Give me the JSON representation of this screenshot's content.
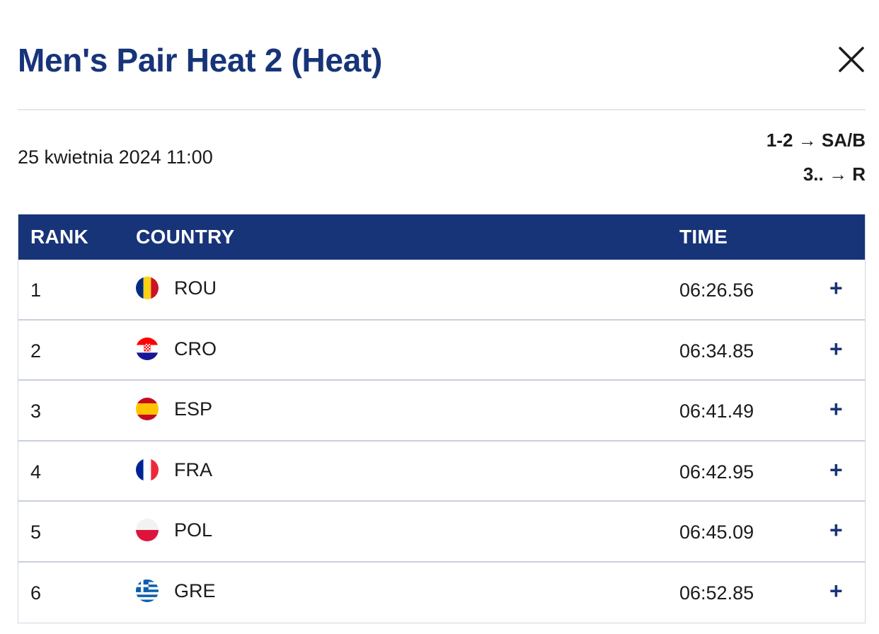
{
  "header": {
    "title": "Men's Pair Heat 2 (Heat)"
  },
  "event": {
    "date": "25 kwietnia 2024 11:00",
    "qualification": [
      {
        "places": "1-2",
        "arrow": "→",
        "target": "SA/B"
      },
      {
        "places": "3..",
        "arrow": "→",
        "target": "R"
      }
    ]
  },
  "table": {
    "columns": {
      "rank": "RANK",
      "country": "COUNTRY",
      "time": "TIME"
    },
    "rows": [
      {
        "rank": "1",
        "country": "ROU",
        "flag": "flag-romania-icon",
        "time": "06:26.56",
        "expand": "+"
      },
      {
        "rank": "2",
        "country": "CRO",
        "flag": "flag-croatia-icon",
        "time": "06:34.85",
        "expand": "+"
      },
      {
        "rank": "3",
        "country": "ESP",
        "flag": "flag-spain-icon",
        "time": "06:41.49",
        "expand": "+"
      },
      {
        "rank": "4",
        "country": "FRA",
        "flag": "flag-france-icon",
        "time": "06:42.95",
        "expand": "+"
      },
      {
        "rank": "5",
        "country": "POL",
        "flag": "flag-poland-icon",
        "time": "06:45.09",
        "expand": "+"
      },
      {
        "rank": "6",
        "country": "GRE",
        "flag": "flag-greece-icon",
        "time": "06:52.85",
        "expand": "+"
      }
    ]
  },
  "colors": {
    "brand": "#173478",
    "text": "#1b1b1b",
    "divider": "#c9cfdb"
  }
}
